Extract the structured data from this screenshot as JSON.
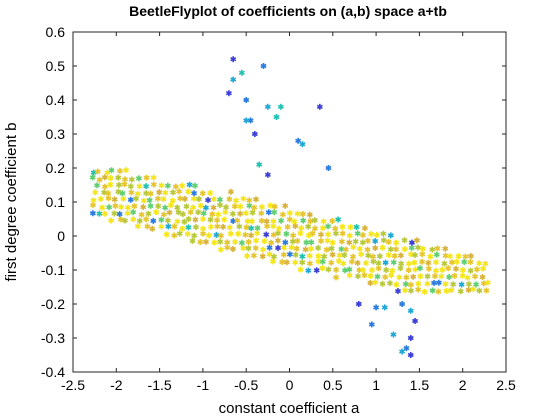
{
  "chart_data": {
    "type": "scatter",
    "title": "BeetleFlyplot of coefficients on (a,b) space a+tb",
    "xlabel": "constant coefficient a",
    "ylabel": "first degree coefficient b",
    "xlim": [
      -2.5,
      2.5
    ],
    "ylim": [
      -0.4,
      0.6
    ],
    "xticks": [
      -2.5,
      -2,
      -1.5,
      -1,
      -0.5,
      0,
      0.5,
      1,
      1.5,
      2,
      2.5
    ],
    "xtick_labels": [
      "-2.5",
      "-2",
      "-1.5",
      "-1",
      "-0.5",
      "0",
      "0.5",
      "1",
      "1.5",
      "2",
      "2.5"
    ],
    "yticks": [
      -0.4,
      -0.3,
      -0.2,
      -0.1,
      0,
      0.1,
      0.2,
      0.3,
      0.4,
      0.5,
      0.6
    ],
    "ytick_labels": [
      "-0.4",
      "-0.3",
      "-0.2",
      "-0.1",
      "0",
      "0.1",
      "0.2",
      "0.3",
      "0.4",
      "0.5",
      "0.6"
    ],
    "grid": false,
    "marker": "asterisk",
    "colormap": [
      "#3b3fd6",
      "#2a7be0",
      "#1fa8d6",
      "#22c2b0",
      "#5fcf72",
      "#b7c93a",
      "#e6c52e",
      "#f5e61a"
    ],
    "bands": {
      "count": 33,
      "slope": -0.066,
      "points_per_band": 18,
      "b_range": [
        -0.16,
        0.19
      ],
      "center_a_first": -1.35,
      "center_a_last": 1.25,
      "colors": [
        "#f5e61a",
        "#e6c52e",
        "#d9b23a",
        "#f5e61a",
        "#b7c93a",
        "#e6c52e",
        "#f5e61a",
        "#5fcf72",
        "#e6c52e",
        "#f5e61a"
      ]
    },
    "outliers_upper": [
      {
        "x": -0.65,
        "y": 0.52
      },
      {
        "x": -0.3,
        "y": 0.5
      },
      {
        "x": -0.65,
        "y": 0.46
      },
      {
        "x": -0.55,
        "y": 0.48
      },
      {
        "x": -0.7,
        "y": 0.42
      },
      {
        "x": -0.5,
        "y": 0.4
      },
      {
        "x": -0.25,
        "y": 0.38
      },
      {
        "x": -0.1,
        "y": 0.38
      },
      {
        "x": 0.35,
        "y": 0.38
      },
      {
        "x": -0.45,
        "y": 0.34
      },
      {
        "x": -0.5,
        "y": 0.34
      },
      {
        "x": -0.15,
        "y": 0.35
      },
      {
        "x": -0.4,
        "y": 0.3
      },
      {
        "x": 0.1,
        "y": 0.28
      },
      {
        "x": 0.15,
        "y": 0.27
      },
      {
        "x": -0.35,
        "y": 0.21
      },
      {
        "x": -0.25,
        "y": 0.18
      },
      {
        "x": 0.45,
        "y": 0.2
      }
    ],
    "outliers_lower": [
      {
        "x": 1.0,
        "y": -0.21
      },
      {
        "x": 1.1,
        "y": -0.21
      },
      {
        "x": 0.8,
        "y": -0.2
      },
      {
        "x": 1.3,
        "y": -0.2
      },
      {
        "x": 1.4,
        "y": -0.22
      },
      {
        "x": 1.45,
        "y": -0.25
      },
      {
        "x": 0.95,
        "y": -0.26
      },
      {
        "x": 1.2,
        "y": -0.29
      },
      {
        "x": 1.4,
        "y": -0.3
      },
      {
        "x": 1.35,
        "y": -0.33
      },
      {
        "x": 1.3,
        "y": -0.34
      },
      {
        "x": 1.4,
        "y": -0.35
      }
    ]
  }
}
